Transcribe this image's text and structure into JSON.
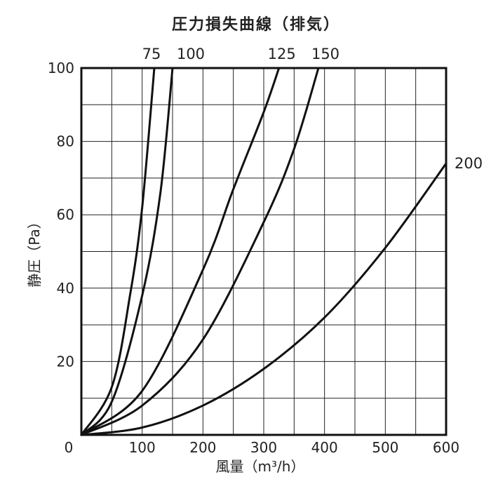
{
  "chart_data": {
    "type": "line",
    "title": "圧力損失曲線（排気）",
    "xlabel": "風量（m³/h）",
    "ylabel": "静圧（Pa）",
    "xlim": [
      0,
      600
    ],
    "ylim": [
      0,
      100
    ],
    "x_ticks": [
      0,
      100,
      200,
      300,
      400,
      500,
      600
    ],
    "y_ticks": [
      0,
      20,
      40,
      60,
      80,
      100
    ],
    "grid": true,
    "series": [
      {
        "name": "75",
        "x": [
          0,
          50,
          80,
          100,
          120
        ],
        "y": [
          0,
          13,
          38,
          62,
          100
        ]
      },
      {
        "name": "100",
        "x": [
          0,
          50,
          100,
          130,
          150
        ],
        "y": [
          0,
          9,
          38,
          66,
          100
        ]
      },
      {
        "name": "125",
        "x": [
          0,
          100,
          200,
          250,
          300,
          325
        ],
        "y": [
          0,
          12,
          45,
          67,
          88,
          100
        ]
      },
      {
        "name": "150",
        "x": [
          0,
          100,
          200,
          300,
          350,
          390
        ],
        "y": [
          0,
          8,
          26,
          58,
          78,
          100
        ]
      },
      {
        "name": "200",
        "x": [
          0,
          100,
          200,
          300,
          400,
          500,
          600
        ],
        "y": [
          0,
          2,
          8,
          18,
          32,
          51,
          74
        ]
      }
    ]
  }
}
